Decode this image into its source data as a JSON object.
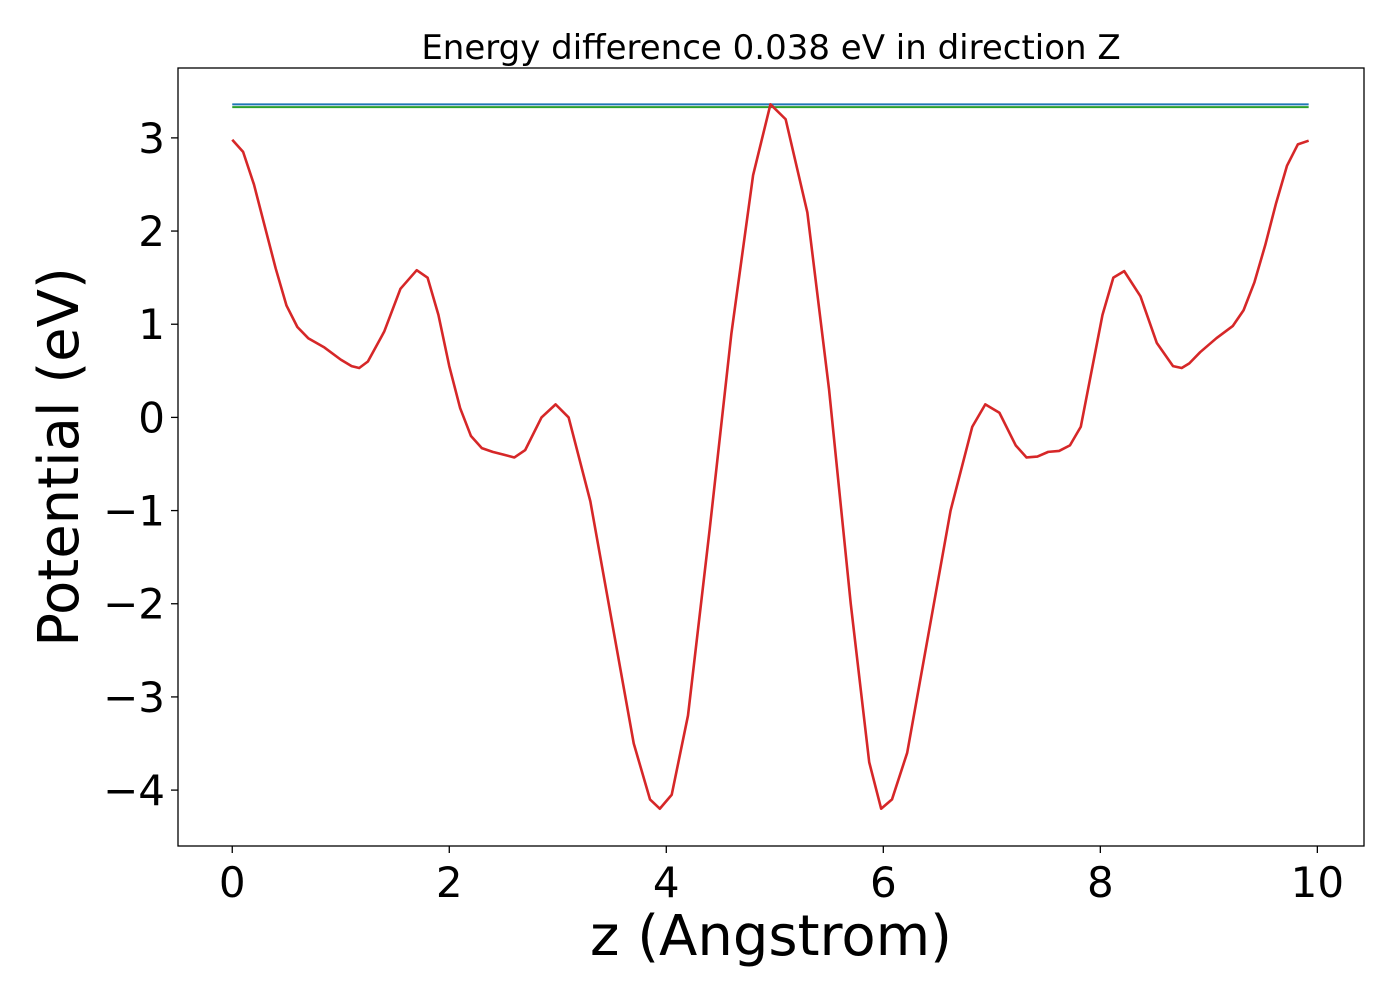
{
  "chart_data": {
    "type": "line",
    "title": "Energy difference 0.038 eV in direction Z",
    "xlabel": "z (Angstrom)",
    "ylabel": "Potential (eV)",
    "xlim": [
      -0.5,
      10.43
    ],
    "ylim": [
      -4.6,
      3.75
    ],
    "xticks": [
      0,
      2,
      4,
      6,
      8,
      10
    ],
    "xtick_labels": [
      "0",
      "2",
      "4",
      "6",
      "8",
      "10"
    ],
    "yticks": [
      -4,
      -3,
      -2,
      -1,
      0,
      1,
      2,
      3
    ],
    "ytick_labels": [
      "−4",
      "−3",
      "−2",
      "−1",
      "0",
      "1",
      "2",
      "3"
    ],
    "grid": false,
    "legend": "none",
    "series": [
      {
        "color": "#1f77b4",
        "x": [
          0,
          9.92
        ],
        "y": [
          3.36,
          3.36
        ]
      },
      {
        "color": "#2ca02c",
        "x": [
          0,
          9.92
        ],
        "y": [
          3.33,
          3.33
        ]
      },
      {
        "color": "#d62728",
        "x": [
          0,
          0.1,
          0.2,
          0.3,
          0.4,
          0.5,
          0.6,
          0.7,
          0.85,
          1.0,
          1.1,
          1.17,
          1.25,
          1.4,
          1.55,
          1.7,
          1.8,
          1.9,
          2.0,
          2.1,
          2.2,
          2.3,
          2.4,
          2.5,
          2.6,
          2.7,
          2.85,
          2.98,
          3.1,
          3.3,
          3.5,
          3.7,
          3.85,
          3.94,
          4.05,
          4.2,
          4.4,
          4.6,
          4.8,
          4.96,
          5.1,
          5.3,
          5.5,
          5.7,
          5.87,
          5.98,
          6.08,
          6.22,
          6.42,
          6.62,
          6.82,
          6.94,
          7.07,
          7.22,
          7.32,
          7.42,
          7.52,
          7.62,
          7.72,
          7.82,
          7.92,
          8.02,
          8.12,
          8.22,
          8.37,
          8.52,
          8.67,
          8.75,
          8.82,
          8.92,
          9.07,
          9.22,
          9.32,
          9.42,
          9.52,
          9.62,
          9.72,
          9.82,
          9.92
        ],
        "y": [
          2.98,
          2.85,
          2.5,
          2.05,
          1.6,
          1.2,
          0.97,
          0.85,
          0.75,
          0.62,
          0.55,
          0.53,
          0.6,
          0.92,
          1.38,
          1.58,
          1.5,
          1.1,
          0.55,
          0.1,
          -0.2,
          -0.33,
          -0.37,
          -0.4,
          -0.43,
          -0.35,
          0.0,
          0.14,
          0.0,
          -0.9,
          -2.2,
          -3.5,
          -4.1,
          -4.2,
          -4.05,
          -3.2,
          -1.2,
          0.9,
          2.6,
          3.36,
          3.2,
          2.2,
          0.3,
          -2.0,
          -3.7,
          -4.2,
          -4.1,
          -3.6,
          -2.3,
          -1.0,
          -0.1,
          0.14,
          0.05,
          -0.3,
          -0.43,
          -0.42,
          -0.37,
          -0.36,
          -0.3,
          -0.1,
          0.5,
          1.1,
          1.5,
          1.57,
          1.3,
          0.8,
          0.55,
          0.53,
          0.58,
          0.7,
          0.85,
          0.98,
          1.15,
          1.45,
          1.85,
          2.3,
          2.7,
          2.93,
          2.97
        ]
      }
    ]
  }
}
